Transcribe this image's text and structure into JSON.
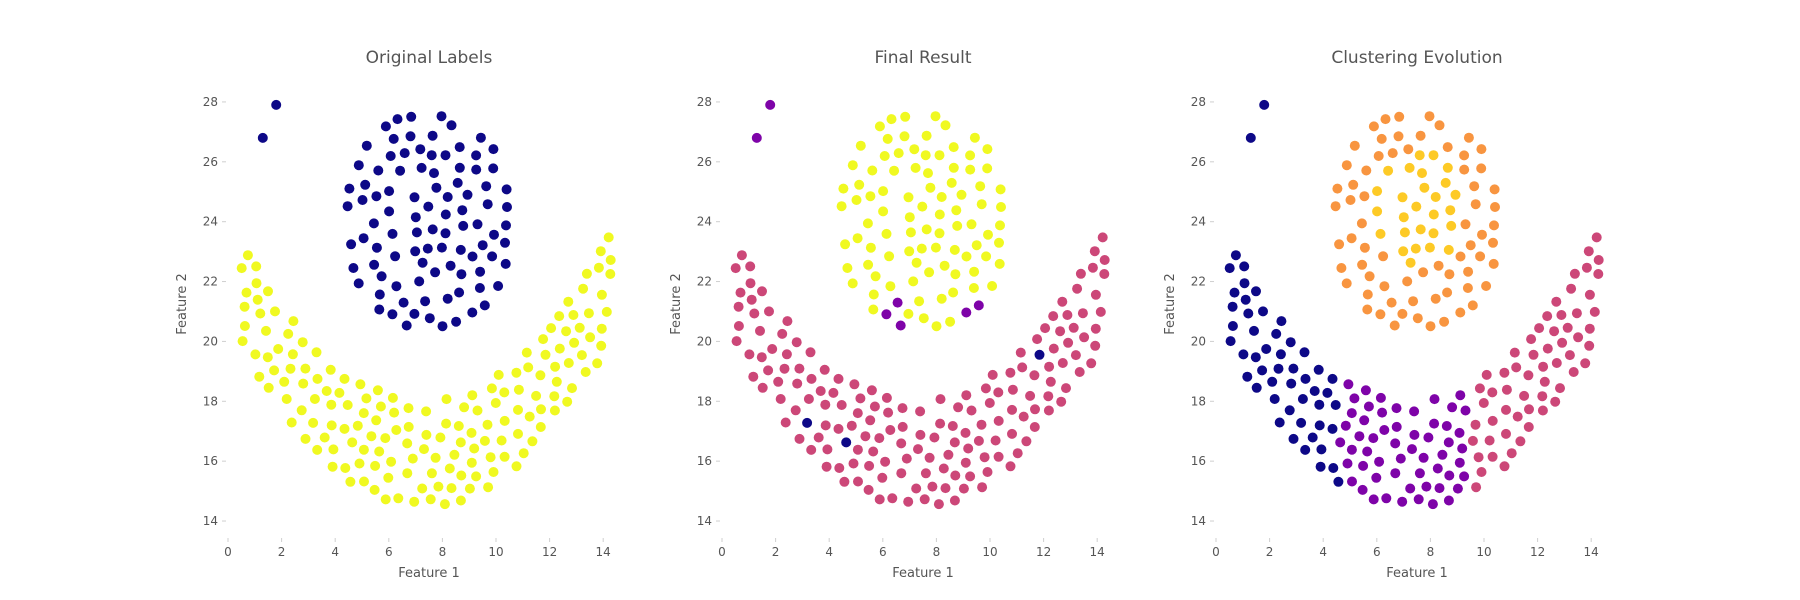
{
  "chart_data": [
    {
      "type": "scatter",
      "title": "Original Labels",
      "xlabel": "Feature 1",
      "ylabel": "Feature 2",
      "xlim": [
        0,
        15
      ],
      "ylim": [
        13.5,
        29
      ],
      "xticks": [
        "0",
        "2",
        "4",
        "6",
        "8",
        "10",
        "12",
        "14"
      ],
      "yticks": [
        "14",
        "16",
        "18",
        "20",
        "22",
        "24",
        "26",
        "28"
      ],
      "grid": false,
      "colors": {
        "0": "#0d0887",
        "1": "#f0f921"
      },
      "points": "moons",
      "color_by": "true"
    },
    {
      "type": "scatter",
      "title": "Final Result",
      "xlabel": "Feature 1",
      "ylabel": "Feature 2",
      "xlim": [
        0,
        15
      ],
      "ylim": [
        13.5,
        29
      ],
      "xticks": [
        "0",
        "2",
        "4",
        "6",
        "8",
        "10",
        "12",
        "14"
      ],
      "yticks": [
        "14",
        "16",
        "18",
        "20",
        "22",
        "24",
        "26",
        "28"
      ],
      "grid": false,
      "colors": {
        "top": "#f0f921",
        "bottom": "#cc4778",
        "outlier": "#0d0887",
        "mid": "#7e03a8"
      },
      "points": "moons",
      "color_by": "final"
    },
    {
      "type": "scatter",
      "title": "Clustering Evolution",
      "xlabel": "Feature 1",
      "ylabel": "Feature 2",
      "xlim": [
        0,
        15
      ],
      "ylim": [
        13.5,
        29
      ],
      "xticks": [
        "0",
        "2",
        "4",
        "6",
        "8",
        "10",
        "12",
        "14"
      ],
      "yticks": [
        "14",
        "16",
        "18",
        "20",
        "22",
        "24",
        "26",
        "28"
      ],
      "grid": false,
      "colors": {
        "c0": "#0d0887",
        "c1": "#7e03a8",
        "c2": "#cc4778",
        "c3": "#f89540",
        "c4": "#fdca26"
      },
      "points": "moons",
      "color_by": "evolution"
    }
  ]
}
